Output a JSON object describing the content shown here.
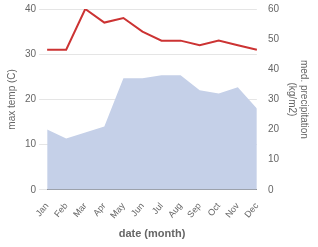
{
  "chart_data": {
    "type": "line",
    "categories": [
      "Jan",
      "Feb",
      "Mar",
      "Apr",
      "May",
      "Jun",
      "Jul",
      "Aug",
      "Sep",
      "Oct",
      "Nov",
      "Dec"
    ],
    "series": [
      {
        "type": "area",
        "axis": "y2",
        "color": "#c5d0e8",
        "values": [
          20,
          17,
          19,
          21,
          37,
          37,
          38,
          38,
          33,
          32,
          34,
          27
        ]
      },
      {
        "type": "line",
        "color": "#cc3333",
        "values": [
          31,
          31,
          40,
          37,
          38,
          35,
          33,
          33,
          32,
          33,
          32,
          31
        ]
      }
    ],
    "xlabel": "date (month)",
    "ylabel": "max temp (C)",
    "y2label": "med. precipitation\n(kg/m2)",
    "ylim": [
      0,
      40
    ],
    "yticks": [
      0,
      10,
      20,
      30,
      40
    ],
    "y2lim": [
      0,
      60
    ],
    "y2ticks": [
      0,
      10,
      20,
      30,
      40,
      50,
      60
    ],
    "grid": true
  }
}
